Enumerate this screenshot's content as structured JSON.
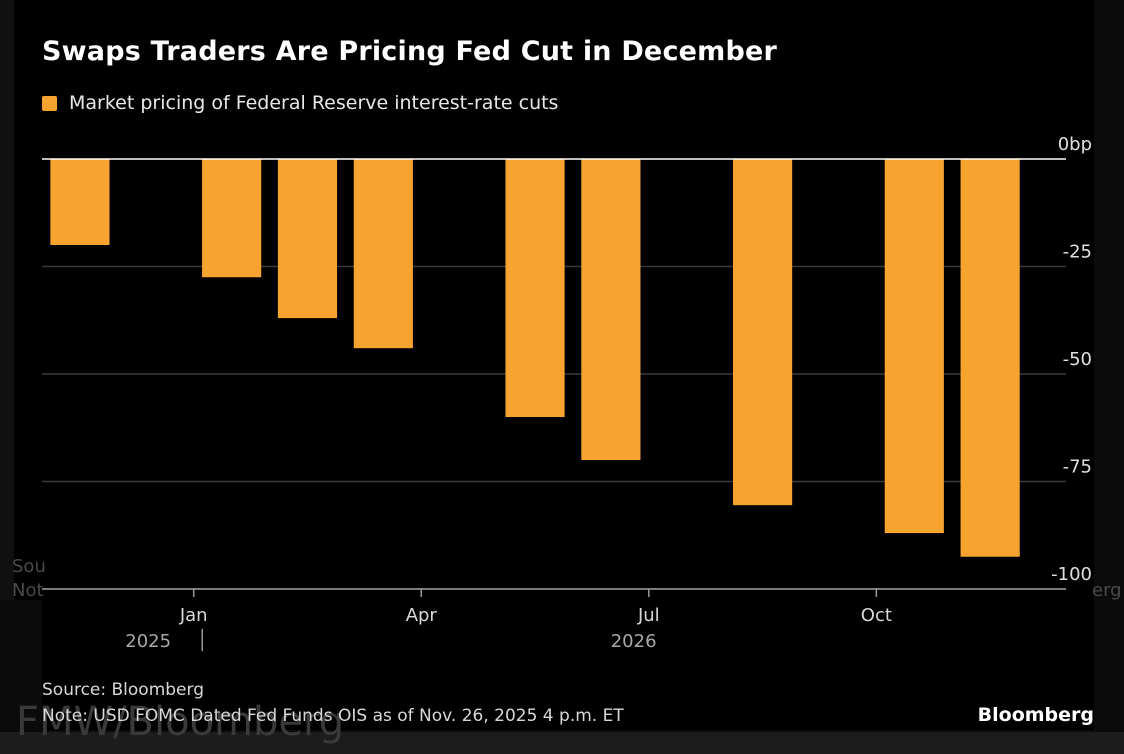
{
  "chart_data": {
    "type": "bar",
    "title": "Swaps Traders Are Pricing Fed Cut in December",
    "legend": [
      {
        "label": "Market pricing of Federal Reserve interest-rate cuts",
        "color": "#f7a330"
      }
    ],
    "series": [
      {
        "name": "Market pricing of Federal Reserve interest-rate cuts",
        "color": "#f7a330",
        "points": [
          {
            "date": "2025-12",
            "value": -20
          },
          {
            "date": "2026-01",
            "value": 0
          },
          {
            "date": "2026-02",
            "value": -27.5
          },
          {
            "date": "2026-03",
            "value": -37
          },
          {
            "date": "2026-04",
            "value": -44
          },
          {
            "date": "2026-05",
            "value": 0
          },
          {
            "date": "2026-06",
            "value": -60
          },
          {
            "date": "2026-07",
            "value": -70
          },
          {
            "date": "2026-08",
            "value": 0
          },
          {
            "date": "2026-09",
            "value": -80.5
          },
          {
            "date": "2026-10",
            "value": 0
          },
          {
            "date": "2026-11",
            "value": -87
          },
          {
            "date": "2026-12",
            "value": -92.5
          }
        ]
      }
    ],
    "y_ticks": [
      {
        "value": 0,
        "label": "0bp"
      },
      {
        "value": -25,
        "label": "-25"
      },
      {
        "value": -50,
        "label": "-50"
      },
      {
        "value": -75,
        "label": "-75"
      },
      {
        "value": -100,
        "label": "-100"
      }
    ],
    "ylim": [
      -100,
      0
    ],
    "x_ticks": [
      {
        "position": 1.5,
        "label": "Jan"
      },
      {
        "position": 4.5,
        "label": "Apr"
      },
      {
        "position": 7.5,
        "label": "Jul"
      },
      {
        "position": 10.5,
        "label": "Oct"
      }
    ],
    "year_labels": [
      {
        "position": 0.9,
        "label": "2025",
        "divider": true
      },
      {
        "position": 7.3,
        "label": "2026",
        "divider": false
      }
    ],
    "xlim": [
      -0.5,
      13
    ],
    "grid": true,
    "y_axis_side": "right"
  },
  "footer": {
    "source": "Source: Bloomberg",
    "note": "Note: USD FOMC Dated Fed Funds OIS as of Nov. 26, 2025 4 p.m. ET",
    "brand": "Bloomberg"
  },
  "background": {
    "watermark": "FMW/Bloomberg",
    "left_fragments": [
      "Sou",
      "Not"
    ],
    "right_fragment": "erg"
  },
  "colors": {
    "bar": "#f7a330",
    "grid": "#3a3a3a",
    "zero_line": "#ffffff",
    "background": "#000000"
  }
}
